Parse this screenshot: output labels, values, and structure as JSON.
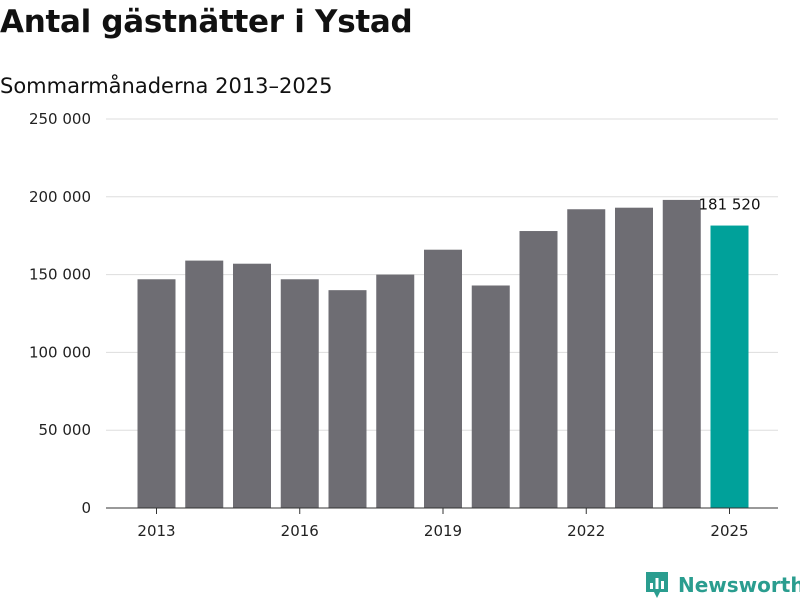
{
  "header": {
    "title": "Antal gästnätter i Ystad",
    "subtitle": "Sommarmånaderna 2013–2025"
  },
  "brand": {
    "name": "Newsworthy",
    "icon": "newsworthy-logo-icon",
    "color": "#2a9d8f"
  },
  "colors": {
    "bar": "#6e6d73",
    "highlight": "#00a19a",
    "grid": "#dddddd"
  },
  "chart_data": {
    "type": "bar",
    "title": "Antal gästnätter i Ystad",
    "subtitle": "Sommarmånaderna 2013–2025",
    "xlabel": "",
    "ylabel": "",
    "categories": [
      2013,
      2014,
      2015,
      2016,
      2017,
      2018,
      2019,
      2020,
      2021,
      2022,
      2023,
      2024,
      2025
    ],
    "values": [
      147000,
      159000,
      157000,
      147000,
      140000,
      150000,
      166000,
      143000,
      178000,
      192000,
      193000,
      198000,
      181520
    ],
    "highlight_index": 12,
    "ylim": [
      0,
      250000
    ],
    "yticks": [
      0,
      50000,
      100000,
      150000,
      200000,
      250000
    ],
    "ytick_labels": [
      "0",
      "50 000",
      "100 000",
      "150 000",
      "200 000",
      "250 000"
    ],
    "xtick_labels": [
      "2013",
      "2016",
      "2019",
      "2022",
      "2025"
    ],
    "xtick_values": [
      2013,
      2016,
      2019,
      2022,
      2025
    ],
    "data_labels": [
      {
        "category": 2025,
        "text": "181 520"
      }
    ],
    "grid": true,
    "legend": "none"
  }
}
